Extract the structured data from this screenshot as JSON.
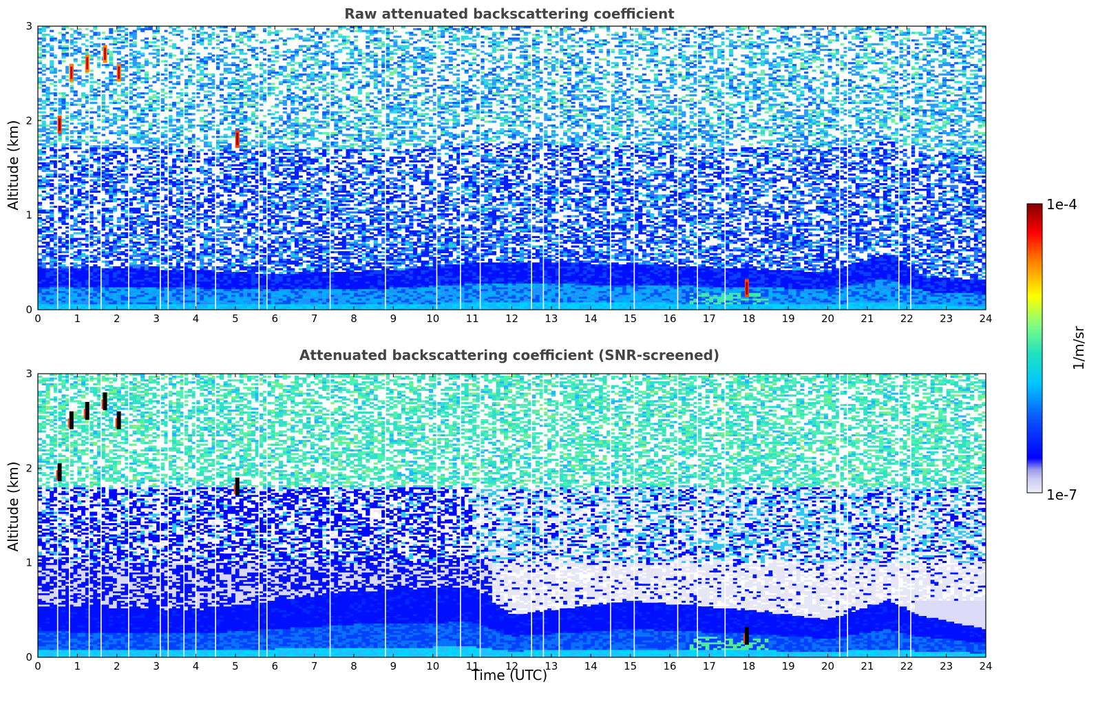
{
  "chart_data": [
    {
      "type": "heatmap",
      "title": "Raw attenuated backscattering coefficient",
      "xlabel": "",
      "ylabel": "Altitude (km)",
      "xlim": [
        0,
        24
      ],
      "ylim": [
        0,
        3
      ],
      "xticks": [
        "0",
        "1",
        "2",
        "3",
        "4",
        "5",
        "6",
        "7",
        "8",
        "9",
        "10",
        "11",
        "12",
        "13",
        "14",
        "15",
        "16",
        "17",
        "18",
        "19",
        "20",
        "21",
        "22",
        "23",
        "24"
      ],
      "yticks": [
        "0",
        "1",
        "2",
        "3"
      ],
      "grid": false,
      "data_gaps_utc": [
        0.5,
        0.8,
        1.3,
        1.6,
        2.3,
        3.1,
        3.3,
        3.7,
        4.0,
        4.5,
        5.6,
        5.8,
        7.4,
        8.8,
        10.1,
        10.7,
        11.2,
        12.5,
        12.8,
        13.2,
        14.5,
        15.1,
        16.2,
        16.7,
        17.4,
        20.3,
        20.5,
        21.8,
        22.1
      ],
      "boundary_layer_top_km": [
        {
          "x": 0,
          "y": 0.45
        },
        {
          "x": 4,
          "y": 0.42
        },
        {
          "x": 6,
          "y": 0.38
        },
        {
          "x": 9,
          "y": 0.42
        },
        {
          "x": 11,
          "y": 0.5
        },
        {
          "x": 13,
          "y": 0.5
        },
        {
          "x": 15,
          "y": 0.48
        },
        {
          "x": 17,
          "y": 0.45
        },
        {
          "x": 20,
          "y": 0.4
        },
        {
          "x": 21.5,
          "y": 0.6
        },
        {
          "x": 22.5,
          "y": 0.35
        },
        {
          "x": 24,
          "y": 0.3
        }
      ],
      "high_signal_features": [
        {
          "x": 0.85,
          "y": 2.5
        },
        {
          "x": 1.25,
          "y": 2.6
        },
        {
          "x": 1.7,
          "y": 2.7
        },
        {
          "x": 2.05,
          "y": 2.5
        },
        {
          "x": 0.55,
          "y": 1.95
        },
        {
          "x": 5.05,
          "y": 1.8
        },
        {
          "x": 17.95,
          "y": 0.22
        }
      ]
    },
    {
      "type": "heatmap",
      "title": "Attenuated backscattering coefficient (SNR-screened)",
      "xlabel": "Time (UTC)",
      "ylabel": "Altitude (km)",
      "xlim": [
        0,
        24
      ],
      "ylim": [
        0,
        3
      ],
      "xticks": [
        "0",
        "1",
        "2",
        "3",
        "4",
        "5",
        "6",
        "7",
        "8",
        "9",
        "10",
        "11",
        "12",
        "13",
        "14",
        "15",
        "16",
        "17",
        "18",
        "19",
        "20",
        "21",
        "22",
        "23",
        "24"
      ],
      "yticks": [
        "0",
        "1",
        "2",
        "3"
      ],
      "grid": false,
      "screened_layer_km": [
        1.0,
        1.8
      ],
      "boundary_layer_top_km": [
        {
          "x": 0,
          "y": 0.55
        },
        {
          "x": 4,
          "y": 0.5
        },
        {
          "x": 8,
          "y": 0.7
        },
        {
          "x": 11,
          "y": 0.75
        },
        {
          "x": 12,
          "y": 0.45
        },
        {
          "x": 15,
          "y": 0.6
        },
        {
          "x": 18,
          "y": 0.5
        },
        {
          "x": 20,
          "y": 0.4
        },
        {
          "x": 21.5,
          "y": 0.6
        },
        {
          "x": 22.3,
          "y": 0.45
        },
        {
          "x": 24,
          "y": 0.3
        }
      ]
    }
  ],
  "colorbar": {
    "label": "1/m/sr",
    "max_label": "1e-4",
    "min_label": "1e-7",
    "scale": "log",
    "range": [
      1e-07,
      0.0001
    ],
    "colormap": [
      "#e6e6f5",
      "#c8c8f0",
      "#9a9aee",
      "#0000ff",
      "#0a40ff",
      "#00c8ff",
      "#20e0c8",
      "#80ff80",
      "#ffff00",
      "#ff8000",
      "#ff0000",
      "#800000"
    ]
  }
}
